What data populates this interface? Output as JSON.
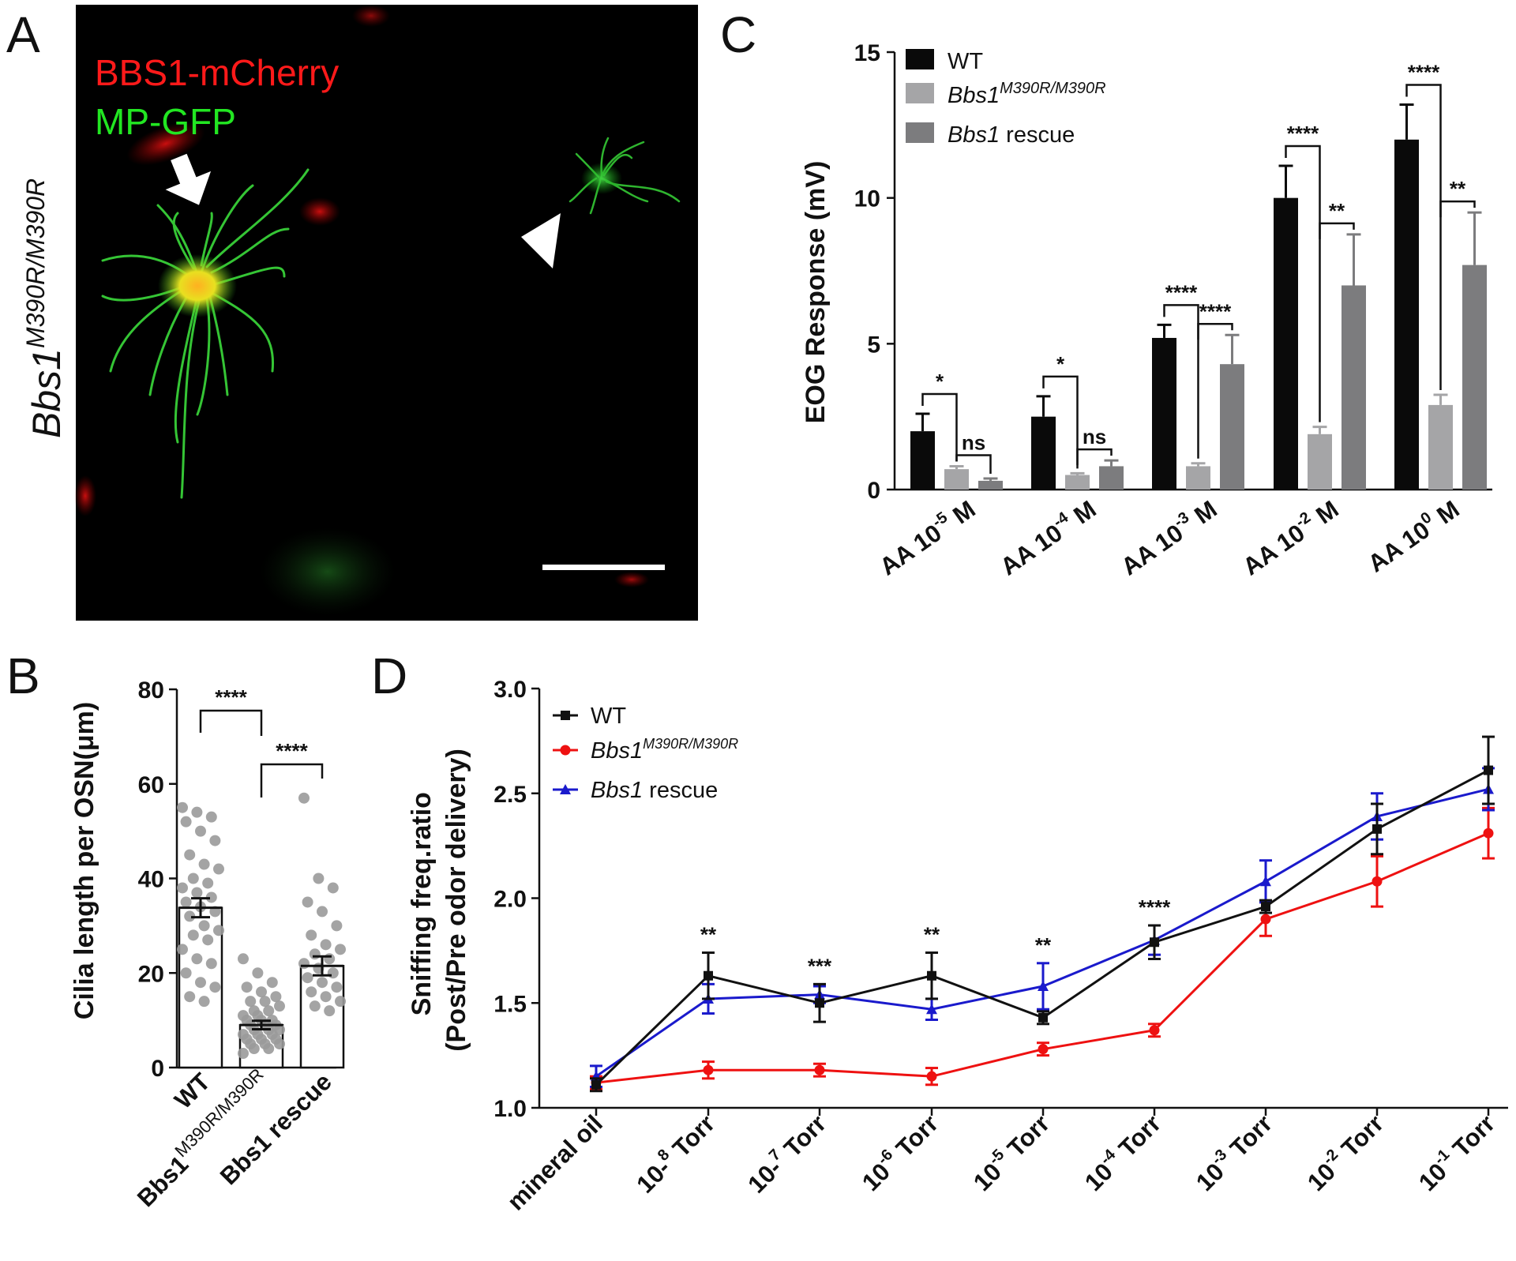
{
  "panels": {
    "a": "A",
    "b": "B",
    "c": "C",
    "d": "D"
  },
  "panel_a": {
    "genotype_label": "Bbs1",
    "genotype_sup": "M390R/M390R",
    "label_red": "BBS1-mCherry",
    "label_green": "MP-GFP",
    "colors": {
      "red": "#ff1a1a",
      "green": "#22e622",
      "background": "#000000"
    }
  },
  "chart_data": [
    {
      "panel": "B",
      "type": "bar",
      "ylabel": "Cilia length per OSN(μm)",
      "ylim": [
        0,
        80
      ],
      "yticks": [
        "0",
        "20",
        "40",
        "60",
        "80"
      ],
      "categories": [
        {
          "label": "WT",
          "sup": ""
        },
        {
          "label": "Bbs1",
          "sup": "M390R/M390R"
        },
        {
          "label": "Bbs1 rescue",
          "sup": ""
        }
      ],
      "values": [
        33.8,
        9.0,
        21.5
      ],
      "sem": [
        2.0,
        0.9,
        2.0
      ],
      "points": [
        [
          55,
          54,
          53,
          52,
          50,
          48,
          45,
          43,
          42,
          40,
          39,
          38,
          37,
          36,
          35,
          34,
          33,
          32,
          30,
          29,
          28,
          27,
          25,
          23,
          22,
          20,
          18,
          17,
          15,
          14
        ],
        [
          23,
          20,
          18,
          17,
          16,
          15,
          14,
          14,
          13,
          12,
          12,
          11,
          11,
          10,
          10,
          10,
          9,
          9,
          9,
          8,
          8,
          8,
          7,
          7,
          7,
          6,
          6,
          6,
          5,
          5,
          5,
          4,
          4,
          3
        ],
        [
          57,
          40,
          38,
          35,
          33,
          30,
          28,
          26,
          25,
          24,
          23,
          22,
          21,
          20,
          19,
          18,
          17,
          16,
          15,
          14,
          13,
          12
        ]
      ],
      "significance": [
        {
          "from": 0,
          "to": 1,
          "label": "****"
        },
        {
          "from": 1,
          "to": 2,
          "label": "****"
        }
      ]
    },
    {
      "panel": "C",
      "type": "bar",
      "ylabel": "EOG Response (mV)",
      "ylim": [
        0,
        15
      ],
      "yticks": [
        "0",
        "5",
        "10",
        "15"
      ],
      "categories": [
        {
          "base": "AA 10",
          "exp": "-5",
          "unit": " M"
        },
        {
          "base": "AA 10",
          "exp": "-4",
          "unit": " M"
        },
        {
          "base": "AA 10",
          "exp": "-3",
          "unit": " M"
        },
        {
          "base": "AA 10",
          "exp": "-2",
          "unit": " M"
        },
        {
          "base": "AA 10",
          "exp": "0",
          "unit": " M"
        }
      ],
      "series": [
        {
          "name": "WT",
          "sup": "",
          "italic": false,
          "color": "#0a0a0a",
          "values": [
            2.0,
            2.5,
            5.2,
            10.0,
            12.0
          ],
          "sem": [
            0.6,
            0.7,
            0.45,
            1.1,
            1.2
          ]
        },
        {
          "name": "Bbs1",
          "sup": "M390R/M390R",
          "italic": true,
          "color": "#a5a5a7",
          "values": [
            0.7,
            0.5,
            0.8,
            1.9,
            2.9
          ],
          "sem": [
            0.1,
            0.06,
            0.1,
            0.25,
            0.35
          ]
        },
        {
          "name": "Bbs1",
          "suffix": " rescue",
          "sup": "",
          "italic": true,
          "color": "#7c7c7e",
          "values": [
            0.3,
            0.8,
            4.3,
            7.0,
            7.7
          ],
          "sem": [
            0.08,
            0.2,
            1.0,
            1.75,
            1.8
          ]
        }
      ],
      "significance": [
        {
          "group": 0,
          "a": 0,
          "b": 1,
          "label": "*"
        },
        {
          "group": 0,
          "a": 1,
          "b": 2,
          "label": "ns"
        },
        {
          "group": 1,
          "a": 0,
          "b": 1,
          "label": "*"
        },
        {
          "group": 1,
          "a": 1,
          "b": 2,
          "label": "ns"
        },
        {
          "group": 2,
          "a": 0,
          "b": 1,
          "label": "****"
        },
        {
          "group": 2,
          "a": 1,
          "b": 2,
          "label": "****"
        },
        {
          "group": 3,
          "a": 0,
          "b": 1,
          "label": "****"
        },
        {
          "group": 3,
          "a": 1,
          "b": 2,
          "label": "**"
        },
        {
          "group": 4,
          "a": 0,
          "b": 1,
          "label": "****"
        },
        {
          "group": 4,
          "a": 1,
          "b": 2,
          "label": "**"
        }
      ]
    },
    {
      "panel": "D",
      "type": "line",
      "ylabel_lines": [
        "Sniffing freq.ratio",
        "(Post/Pre odor delivery)"
      ],
      "ylim": [
        1.0,
        3.0
      ],
      "yticks": [
        "1.0",
        "1.5",
        "2.0",
        "2.5",
        "3.0"
      ],
      "categories": [
        {
          "base": "mineral oil",
          "exp": "",
          "unit": ""
        },
        {
          "base": "10-",
          "exp": "8",
          "unit": " Torr"
        },
        {
          "base": "10-",
          "exp": "7",
          "unit": " Torr"
        },
        {
          "base": "10",
          "exp": "-6",
          "unit": " Torr"
        },
        {
          "base": "10",
          "exp": "-5",
          "unit": " Torr"
        },
        {
          "base": "10",
          "exp": "-4",
          "unit": " Torr"
        },
        {
          "base": "10",
          "exp": "-3",
          "unit": " Torr"
        },
        {
          "base": "10",
          "exp": "-2",
          "unit": " Torr"
        },
        {
          "base": "10",
          "exp": "-1",
          "unit": " Torr"
        }
      ],
      "series": [
        {
          "name": "WT",
          "sup": "",
          "italic": false,
          "color": "#111111",
          "marker": "square",
          "values": [
            1.11,
            1.63,
            1.5,
            1.63,
            1.43,
            1.79,
            1.96,
            2.33,
            2.61
          ],
          "err": [
            0.03,
            0.11,
            0.09,
            0.11,
            0.03,
            0.08,
            0.03,
            0.12,
            0.16
          ]
        },
        {
          "name": "Bbs1",
          "sup": "M390R/M390R",
          "italic": true,
          "color": "#ee1111",
          "marker": "circle",
          "values": [
            1.12,
            1.18,
            1.18,
            1.15,
            1.28,
            1.37,
            1.9,
            2.08,
            2.31
          ],
          "err": [
            0.03,
            0.04,
            0.03,
            0.04,
            0.03,
            0.03,
            0.08,
            0.12,
            0.12
          ]
        },
        {
          "name": "Bbs1",
          "suffix": " rescue",
          "sup": "",
          "italic": true,
          "color": "#1a1acc",
          "marker": "triangle",
          "values": [
            1.15,
            1.52,
            1.54,
            1.47,
            1.58,
            1.8,
            2.08,
            2.39,
            2.52
          ],
          "err": [
            0.05,
            0.07,
            0.04,
            0.05,
            0.11,
            0.07,
            0.1,
            0.11,
            0.1
          ]
        }
      ],
      "annotations": [
        {
          "index": 1,
          "label": "**"
        },
        {
          "index": 2,
          "label": "***"
        },
        {
          "index": 3,
          "label": "**"
        },
        {
          "index": 4,
          "label": "**"
        },
        {
          "index": 5,
          "label": "****"
        }
      ],
      "annotation_color": "#1a1acc"
    }
  ]
}
